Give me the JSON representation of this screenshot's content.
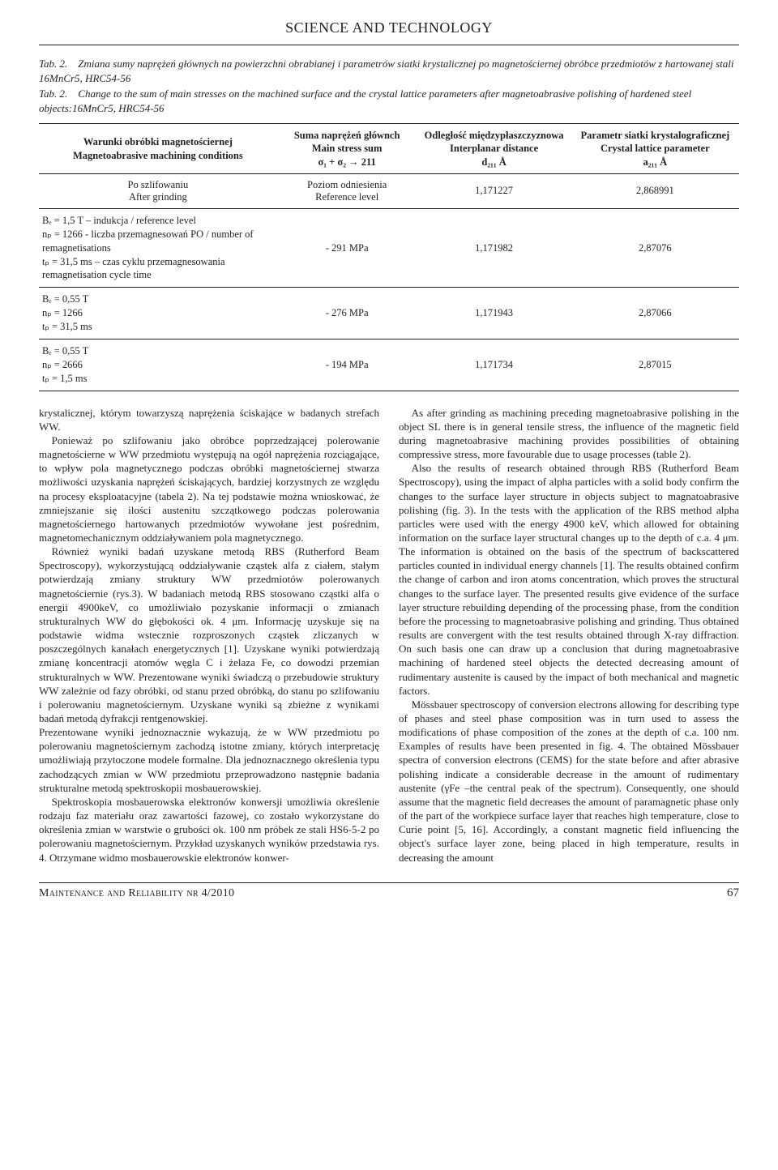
{
  "running_head": "SCIENCE AND TECHNOLOGY",
  "caption_pl": "Tab. 2. Zmiana sumy naprężeń głównych na powierzchni obrabianej i parametrów siatki krystalicznej po magnetościernej obróbce przedmiotów z hartowanej stali 16MnCr5, HRC54-56",
  "caption_en": "Tab. 2. Change to the sum of main stresses on the machined surface and the crystal lattice parameters after magnetoabrasive polishing of hardened steel objects:16MnCr5, HRC54-56",
  "table": {
    "headers": {
      "c1": "Warunki obróbki magnetościernej\nMagnetoabrasive machining conditions",
      "c2": "Suma naprężeń głównch\nMain stress sum\nσ₁ + σ₂ → 211",
      "c3": "Odległość międzypłaszczyznowa\nInterplanar distance\nd₂₁₁ Å",
      "c4": "Parametr siatki krystalograficznej\nCrystal lattice parameter\na₂₁₁ Å"
    },
    "rows": [
      {
        "cond": "Po szlifowaniu\nAfter grinding",
        "align": "center",
        "stress": "Poziom odniesienia\nReference level",
        "d": "1,171227",
        "a": "2,868991"
      },
      {
        "cond": "Bₑ = 1,5 T – indukcja / reference level\nnₚ = 1266 - liczba przemagnesowań PO / number of remagnetisations\ntₚ = 31,5 ms – czas cyklu przemagnesowania remagnetisation cycle time",
        "align": "left",
        "stress": "- 291 MPa",
        "d": "1,171982",
        "a": "2,87076"
      },
      {
        "cond": "Bₑ = 0,55 T\nnₚ = 1266\ntₚ = 31,5 ms",
        "align": "left",
        "stress": "- 276 MPa",
        "d": "1,171943",
        "a": "2,87066"
      },
      {
        "cond": "Bₑ = 0,55 T\nnₚ = 2666\ntₚ = 1,5 ms",
        "align": "left",
        "stress": "- 194 MPa",
        "d": "1,171734",
        "a": "2,87015"
      }
    ]
  },
  "body": {
    "left": [
      "krystalicznej, którym towarzyszą naprężenia ściskające w badanych strefach WW.",
      "Ponieważ po szlifowaniu jako obróbce poprzedzającej polerowanie magnetościerne w WW przedmiotu występują na ogół naprężenia rozciągające, to wpływ pola magnetycznego podczas obróbki magnetościernej stwarza możliwości uzyskania naprężeń ściskających, bardziej korzystnych ze względu na procesy eksploatacyjne (tabela 2). Na tej podstawie można wnioskować, że zmniejszanie się ilości austenitu szczątkowego podczas polerowania magnetościernego hartowanych przedmiotów wywołane jest pośrednim, magnetomechanicznym oddziaływaniem pola magnetycznego.",
      "Również wyniki badań uzyskane metodą RBS (Rutherford Beam Spectroscopy), wykorzystującą oddziaływanie cząstek alfa z ciałem, stałym potwierdzają zmiany struktury WW przedmiotów polerowanych magnetościernie (rys.3). W badaniach metodą RBS stosowano cząstki alfa o energii 4900keV, co umożliwiało pozyskanie informacji o zmianach strukturalnych WW do głębokości ok. 4 μm. Informację uzyskuje się na podstawie widma wstecznie rozproszonych cząstek zliczanych w poszczególnych kanałach energetycznych [1]. Uzyskane wyniki potwierdzają zmianę koncentracji atomów węgla C i żelaza Fe, co dowodzi przemian strukturalnych w WW. Prezentowane wyniki świadczą o przebudowie struktury WW zależnie od fazy obróbki, od stanu przed obróbką, do stanu po szlifowaniu i polerowaniu magnetościernym. Uzyskane wyniki są zbieżne z wynikami badań metodą dyfrakcji rentgenowskiej.",
      "Prezentowane wyniki jednoznacznie wykazują, że w WW przedmiotu po polerowaniu magnetościernym zachodzą istotne zmiany, których interpretację umożliwiają przytoczone modele formalne. Dla jednoznacznego określenia typu zachodzących zmian w WW przedmiotu przeprowadzono następnie badania strukturalne metodą spektroskopii mosbauerowskiej.",
      "Spektroskopia mosbauerowska elektronów konwersji umożliwia określenie rodzaju faz materiału oraz zawartości fazowej, co zostało wykorzystane do określenia zmian w warstwie o grubości ok. 100 nm próbek ze stali HS6-5-2 po polerowaniu magnetościernym. Przykład uzyskanych wyników przedstawia rys. 4. Otrzymane widmo mosbauerowskie elektronów konwer-"
    ],
    "right": [
      "As after grinding as machining preceding magnetoabrasive polishing in the object SL there is in general tensile stress, the influence of the magnetic field during magnetoabrasive machining provides possibilities of obtaining compressive stress, more favourable due to usage processes (table 2).",
      "Also the results of research obtained through RBS (Rutherford Beam Spectroscopy), using the impact of alpha particles with a solid body confirm the changes to the surface layer structure in objects subject to magnatoabrasive polishing (fig. 3). In the tests with the application of the RBS method alpha particles were used with the energy 4900 keV, which allowed for obtaining information on the surface layer structural changes up to the depth of c.a. 4 μm. The information is obtained on the basis of the spectrum of backscattered particles counted in individual energy channels [1]. The results obtained confirm the change of carbon and iron atoms concentration, which proves the structural changes to the surface layer. The presented results give evidence of the surface layer structure rebuilding depending of the processing phase, from the condition before the processing to magnetoabrasive polishing and grinding. Thus obtained results are convergent with the test results obtained through X-ray diffraction. On such basis one can draw up a conclusion that during magnetoabrasive machining of hardened steel objects the detected decreasing amount of rudimentary austenite is caused by the impact of both mechanical and magnetic factors.",
      "Mössbauer spectroscopy of conversion electrons allowing for describing type of phases and steel phase composition was in turn used to assess the modifications of phase composition of the zones at the depth of c.a. 100 nm. Examples of results have been presented in fig. 4. The obtained Mössbauer spectra of conversion electrons (CEMS) for the state before and after abrasive polishing indicate a considerable decrease in the amount of rudimentary austenite (γFe –the central peak of the spectrum). Consequently, one should assume that the magnetic field decreases the amount of paramagnetic phase only of the part of the workpiece surface layer that reaches high temperature, close to Curie point [5, 16]. Accordingly, a constant magnetic field influencing the object's surface layer zone, being placed in high temperature, results in decreasing the amount"
    ]
  },
  "footer": {
    "journal": "Maintenance and Reliability nr 4/2010",
    "page": "67"
  }
}
